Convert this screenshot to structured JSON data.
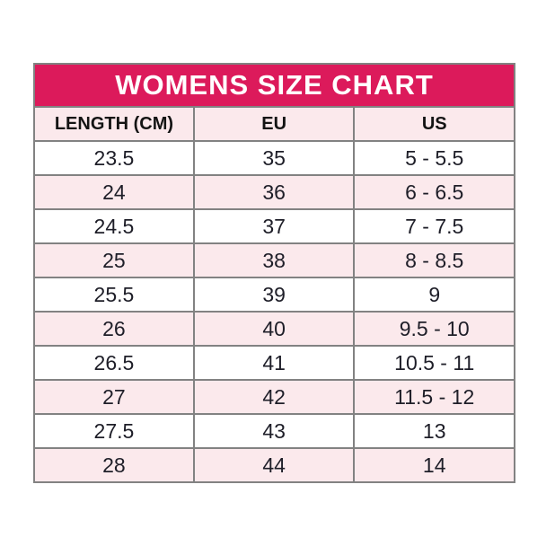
{
  "title": "WOMENS SIZE CHART",
  "colors": {
    "title_bg": "#dc1a5b",
    "title_text": "#ffffff",
    "header_bg": "#fbe9ec",
    "row_bg": "#ffffff",
    "row_alt_bg": "#fbe9ec",
    "border": "#828282",
    "cell_text": "#1e1e28"
  },
  "chart_data": {
    "type": "table",
    "title": "WOMENS SIZE CHART",
    "columns": [
      "LENGTH (CM)",
      "EU",
      "US"
    ],
    "rows": [
      [
        "23.5",
        "35",
        "5 - 5.5"
      ],
      [
        "24",
        "36",
        "6 - 6.5"
      ],
      [
        "24.5",
        "37",
        "7 - 7.5"
      ],
      [
        "25",
        "38",
        "8 - 8.5"
      ],
      [
        "25.5",
        "39",
        "9"
      ],
      [
        "26",
        "40",
        "9.5 - 10"
      ],
      [
        "26.5",
        "41",
        "10.5 - 11"
      ],
      [
        "27",
        "42",
        "11.5 - 12"
      ],
      [
        "27.5",
        "43",
        "13"
      ],
      [
        "28",
        "44",
        "14"
      ]
    ]
  }
}
